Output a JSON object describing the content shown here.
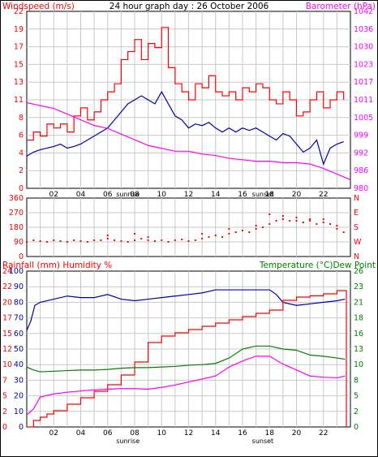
{
  "chart_data": [
    {
      "type": "line",
      "title": "24 hour graph day : 26 October 2006",
      "left_axis": {
        "label": "Windspeed (m/s)",
        "ticks": [
          0,
          2,
          4,
          6,
          8,
          11,
          13,
          15,
          17,
          19,
          22
        ],
        "range": [
          0,
          22
        ]
      },
      "right_axis": {
        "label": "Barometer (hPa)",
        "ticks": [
          980,
          986,
          992,
          999,
          1005,
          1011,
          1017,
          1023,
          1030,
          1036,
          1042
        ],
        "range": [
          980,
          1042
        ]
      },
      "x_ticks": [
        "02",
        "04",
        "06",
        "08",
        "10",
        "12",
        "14",
        "16",
        "18",
        "20",
        "22"
      ],
      "x_range_hours": [
        0,
        24
      ],
      "annotations": [
        "sunrise",
        "sunset"
      ],
      "annotation_hours": [
        7.5,
        17.5
      ],
      "colors": {
        "gust": "#ff0000",
        "speed": "#0000aa",
        "barometer": "#ff00ff"
      },
      "series": [
        {
          "key": "gust",
          "x": [
            0,
            0.5,
            1,
            1.5,
            2,
            2.5,
            3,
            3.5,
            4,
            4.5,
            5,
            5.5,
            6,
            6.5,
            7,
            7.5,
            8,
            8.5,
            9,
            9.5,
            10,
            10.5,
            11,
            11.5,
            12,
            12.5,
            13,
            13.5,
            14,
            14.5,
            15,
            15.5,
            16,
            16.5,
            17,
            17.5,
            18,
            18.5,
            19,
            19.5,
            20,
            20.5,
            21,
            21.5,
            22,
            22.5,
            23,
            23.5
          ],
          "values": [
            6,
            7,
            6.5,
            8,
            7.5,
            8,
            7,
            9,
            10,
            8.5,
            9.5,
            11,
            12,
            13,
            16,
            17,
            18.5,
            16,
            18,
            17.5,
            20,
            15,
            13,
            12,
            11,
            13,
            12.5,
            14,
            12,
            11.5,
            12,
            11,
            12.5,
            12,
            13,
            12.5,
            11,
            10.5,
            12,
            11,
            9,
            9.5,
            11,
            12,
            10,
            11,
            12,
            11
          ]
        },
        {
          "key": "speed",
          "x": [
            0,
            0.5,
            1,
            1.5,
            2,
            2.5,
            3,
            3.5,
            4,
            4.5,
            5,
            5.5,
            6,
            6.5,
            7,
            7.5,
            8,
            8.5,
            9,
            9.5,
            10,
            10.5,
            11,
            11.5,
            12,
            12.5,
            13,
            13.5,
            14,
            14.5,
            15,
            15.5,
            16,
            16.5,
            17,
            17.5,
            18,
            18.5,
            19,
            19.5,
            20,
            20.5,
            21,
            21.5,
            22,
            22.5,
            23,
            23.5
          ],
          "values": [
            4,
            4.5,
            4.8,
            5,
            5.2,
            5.5,
            5,
            5.2,
            5.5,
            6,
            6.5,
            7,
            7.5,
            8.5,
            9.5,
            10.5,
            11,
            11.5,
            11,
            10.5,
            12,
            10.5,
            9,
            8.5,
            7.5,
            8,
            7.8,
            8.2,
            7.5,
            7,
            7.5,
            7,
            7.5,
            7.2,
            7.5,
            7,
            6.5,
            6,
            6.8,
            6.5,
            5.5,
            4.5,
            5,
            6,
            3,
            5,
            5.5,
            5.8
          ]
        },
        {
          "key": "barometer",
          "axis": "right",
          "x": [
            0,
            1,
            2,
            3,
            4,
            5,
            6,
            7,
            8,
            9,
            10,
            11,
            12,
            13,
            14,
            15,
            16,
            17,
            18,
            19,
            20,
            21,
            22,
            23,
            24
          ],
          "values": [
            1010,
            1009,
            1008,
            1006,
            1004,
            1002,
            1001,
            999,
            997,
            995,
            994,
            993,
            993,
            992,
            991.5,
            990.5,
            990,
            989.5,
            989.5,
            989,
            989,
            988.5,
            987,
            985,
            983
          ]
        }
      ]
    },
    {
      "type": "scatter",
      "left_axis": {
        "label": "",
        "ticks": [
          0,
          90,
          180,
          270,
          360
        ],
        "range": [
          0,
          360
        ]
      },
      "right_axis": {
        "label": "",
        "ticks": [
          "N",
          "W",
          "S",
          "E",
          "N"
        ]
      },
      "x_range_hours": [
        0,
        24
      ],
      "color": "#ff0000",
      "points": [
        [
          0,
          90
        ],
        [
          0.5,
          100
        ],
        [
          1,
          95
        ],
        [
          1.5,
          90
        ],
        [
          2,
          100
        ],
        [
          2.5,
          95
        ],
        [
          3,
          90
        ],
        [
          3.5,
          100
        ],
        [
          4,
          95
        ],
        [
          4.5,
          90
        ],
        [
          5,
          100
        ],
        [
          5.5,
          100
        ],
        [
          6,
          110
        ],
        [
          6.5,
          100
        ],
        [
          7,
          95
        ],
        [
          7.5,
          90
        ],
        [
          8,
          100
        ],
        [
          8.5,
          110
        ],
        [
          9,
          100
        ],
        [
          9.5,
          95
        ],
        [
          10,
          100
        ],
        [
          10.5,
          90
        ],
        [
          11,
          100
        ],
        [
          11.5,
          105
        ],
        [
          12,
          95
        ],
        [
          12.5,
          100
        ],
        [
          13,
          110
        ],
        [
          13.5,
          120
        ],
        [
          14,
          130
        ],
        [
          14.5,
          120
        ],
        [
          15,
          140
        ],
        [
          15.5,
          150
        ],
        [
          16,
          160
        ],
        [
          16.5,
          150
        ],
        [
          17,
          170
        ],
        [
          17.5,
          180
        ],
        [
          18,
          200
        ],
        [
          18.5,
          220
        ],
        [
          19,
          230
        ],
        [
          19.5,
          220
        ],
        [
          20,
          220
        ],
        [
          20.5,
          210
        ],
        [
          21,
          220
        ],
        [
          21.5,
          200
        ],
        [
          22,
          210
        ],
        [
          22.5,
          200
        ],
        [
          23,
          190
        ],
        [
          23.5,
          150
        ],
        [
          6,
          130
        ],
        [
          8,
          140
        ],
        [
          9,
          120
        ],
        [
          13,
          140
        ],
        [
          15,
          170
        ],
        [
          17,
          190
        ],
        [
          18,
          260
        ],
        [
          19,
          250
        ],
        [
          20,
          240
        ],
        [
          21,
          230
        ],
        [
          22,
          230
        ],
        [
          23,
          170
        ]
      ]
    },
    {
      "type": "line",
      "left_axis": {
        "label": "Rainfall (mm)  Humidity %",
        "ticks_humidity": [
          0,
          10,
          20,
          30,
          40,
          50,
          60,
          70,
          80,
          90,
          100
        ],
        "ticks_rainfall": [
          0,
          2,
          5,
          7,
          10,
          12,
          15,
          17,
          20,
          22,
          24
        ]
      },
      "right_axis": {
        "label": "Temperature (°C)Dew Point",
        "ticks": [
          0,
          2,
          5,
          8,
          10,
          13,
          16,
          18,
          21,
          23,
          26
        ]
      },
      "x_ticks": [
        "02",
        "04",
        "06",
        "08",
        "10",
        "12",
        "14",
        "16",
        "18",
        "20",
        "22"
      ],
      "x_range_hours": [
        0,
        24
      ],
      "annotations": [
        "sunrise",
        "sunset"
      ],
      "annotation_hours": [
        7.5,
        17.5
      ],
      "colors": {
        "humidity": "#0000aa",
        "rainfall": "#ff0000",
        "temperature": "#008000",
        "dewpoint": "#ff00ff"
      },
      "series": [
        {
          "key": "humidity",
          "x": [
            0,
            0.3,
            0.6,
            1,
            2,
            3,
            4,
            5,
            6,
            7,
            8,
            9,
            10,
            11,
            12,
            13,
            14,
            15,
            16,
            17,
            18,
            18.5,
            19,
            20,
            21,
            22,
            23,
            23.6
          ],
          "values": [
            62,
            68,
            78,
            80,
            82,
            84,
            83,
            83,
            85,
            82,
            81,
            82,
            83,
            84,
            85,
            86,
            88,
            88,
            88,
            88,
            88,
            85,
            80,
            78,
            79,
            80,
            81,
            82
          ]
        },
        {
          "key": "rainfall",
          "x": [
            0,
            0.5,
            1,
            1.5,
            2,
            3,
            4,
            5,
            6,
            7,
            8,
            9,
            10,
            11,
            12,
            13,
            14,
            15,
            16,
            17,
            18,
            19,
            20,
            21,
            22,
            23,
            23.6,
            23.7
          ],
          "values": [
            0,
            1,
            1.5,
            2,
            2.5,
            3.5,
            4.5,
            5.5,
            6.5,
            8,
            10,
            13,
            14,
            14.5,
            15,
            15.5,
            16,
            16.5,
            17,
            17.5,
            18,
            19.5,
            20,
            20.2,
            20.5,
            21,
            21,
            0
          ]
        },
        {
          "key": "temperature",
          "x": [
            0,
            0.5,
            1,
            2,
            3,
            4,
            5,
            6,
            7,
            8,
            9,
            10,
            11,
            12,
            13,
            14,
            15,
            16,
            17,
            18,
            19,
            20,
            21,
            22,
            23,
            23.6
          ],
          "values": [
            10,
            9.5,
            9.2,
            9.3,
            9.4,
            9.5,
            9.5,
            9.6,
            9.8,
            9.9,
            9.9,
            10,
            10.1,
            10.3,
            10.4,
            10.6,
            11.5,
            13,
            13.5,
            13.5,
            13,
            12.8,
            12,
            11.8,
            11.5,
            11.3
          ]
        },
        {
          "key": "dewpoint",
          "x": [
            0,
            0.5,
            1,
            2,
            3,
            4,
            5,
            6,
            7,
            8,
            9,
            10,
            11,
            12,
            13,
            14,
            15,
            16,
            17,
            18,
            19,
            20,
            21,
            22,
            23,
            23.6
          ],
          "values": [
            2,
            3,
            5,
            5.5,
            5.8,
            6,
            6.2,
            6.3,
            6.4,
            6.4,
            6.3,
            6.6,
            7,
            7.5,
            8,
            8.5,
            10,
            11,
            11.8,
            11.8,
            10.5,
            9.5,
            8.5,
            8.3,
            8.2,
            8.5
          ]
        }
      ]
    }
  ]
}
